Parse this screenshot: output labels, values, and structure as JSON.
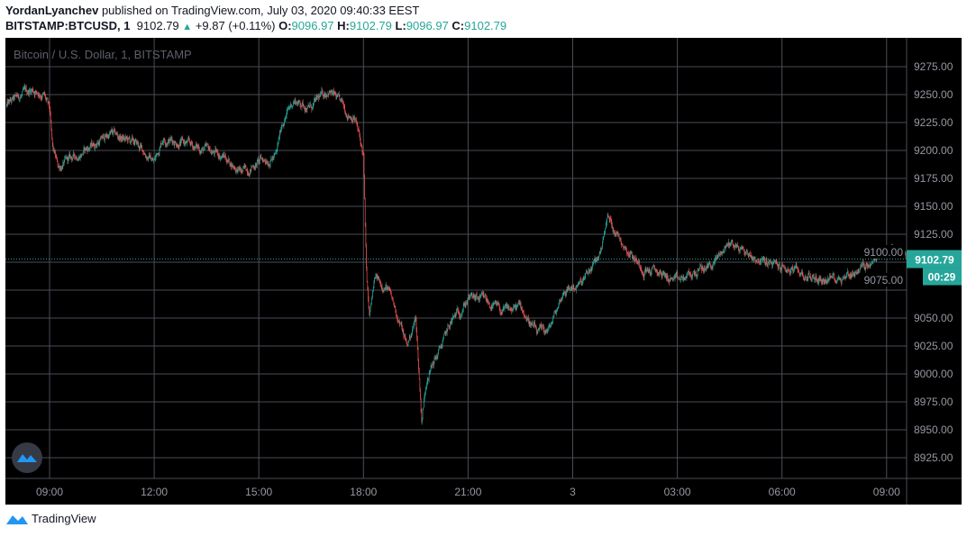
{
  "header": {
    "author": "YordanLyanchev",
    "published_text": "published on TradingView.com, July 03, 2020 09:40:33 EEST",
    "symbol": "BITSTAMP:BTCUSD, 1",
    "last": "9102.79",
    "change": "+9.87 (+0.11%)",
    "o_label": "O:",
    "o": "9096.97",
    "h_label": "H:",
    "h": "9102.79",
    "l_label": "L:",
    "l": "9096.97",
    "c_label": "C:",
    "c": "9102.79"
  },
  "footer": {
    "brand": "TradingView"
  },
  "colors": {
    "up": "#26a69a",
    "down": "#ef5350",
    "background": "#000000",
    "grid": "#4a4d56",
    "axis_text": "#9598a1"
  },
  "chart_data": {
    "type": "candlestick",
    "title": "Bitcoin / U.S. Dollar, 1, BITSTAMP",
    "interval_minutes": 1,
    "ylim": [
      8912,
      9290
    ],
    "y_ticks": [
      "9275.00",
      "9250.00",
      "9225.00",
      "9200.00",
      "9175.00",
      "9150.00",
      "9125.00",
      "9100.00",
      "9075.00",
      "9050.00",
      "9025.00",
      "9000.00",
      "8975.00",
      "8950.00",
      "8925.00"
    ],
    "x_ticks": [
      {
        "label": "09:00",
        "t": "07-02 09:00"
      },
      {
        "label": "12:00",
        "t": "07-02 12:00"
      },
      {
        "label": "15:00",
        "t": "07-02 15:00"
      },
      {
        "label": "18:00",
        "t": "07-02 18:00"
      },
      {
        "label": "21:00",
        "t": "07-02 21:00"
      },
      {
        "label": "3",
        "t": "07-03 00:00"
      },
      {
        "label": "03:00",
        "t": "07-03 03:00"
      },
      {
        "label": "06:00",
        "t": "07-03 06:00"
      },
      {
        "label": "09:00",
        "t": "07-03 09:00"
      }
    ],
    "last_price": "9102.79",
    "countdown": "00:29",
    "grid": true,
    "key_points": [
      [
        "07-02 07:46",
        9240
      ],
      [
        "07-02 08:00",
        9245
      ],
      [
        "07-02 08:30",
        9255
      ],
      [
        "07-02 08:50",
        9250
      ],
      [
        "07-02 09:00",
        9235
      ],
      [
        "07-02 09:05",
        9200
      ],
      [
        "07-02 09:15",
        9185
      ],
      [
        "07-02 10:00",
        9200
      ],
      [
        "07-02 10:45",
        9215
      ],
      [
        "07-02 11:30",
        9205
      ],
      [
        "07-02 12:00",
        9190
      ],
      [
        "07-02 12:15",
        9212
      ],
      [
        "07-02 13:00",
        9205
      ],
      [
        "07-02 14:00",
        9195
      ],
      [
        "07-02 14:30",
        9180
      ],
      [
        "07-02 15:00",
        9190
      ],
      [
        "07-02 15:30",
        9195
      ],
      [
        "07-02 15:40",
        9225
      ],
      [
        "07-02 16:00",
        9245
      ],
      [
        "07-02 16:30",
        9238
      ],
      [
        "07-02 17:00",
        9255
      ],
      [
        "07-02 17:30",
        9235
      ],
      [
        "07-02 17:45",
        9230
      ],
      [
        "07-02 18:00",
        9195
      ],
      [
        "07-02 18:05",
        9090
      ],
      [
        "07-02 18:10",
        9050
      ],
      [
        "07-02 18:20",
        9085
      ],
      [
        "07-02 18:40",
        9078
      ],
      [
        "07-02 19:00",
        9050
      ],
      [
        "07-02 19:15",
        9025
      ],
      [
        "07-02 19:30",
        9050
      ],
      [
        "07-02 19:40",
        8960
      ],
      [
        "07-02 19:50",
        9000
      ],
      [
        "07-02 20:10",
        9020
      ],
      [
        "07-02 20:30",
        9045
      ],
      [
        "07-02 21:00",
        9068
      ],
      [
        "07-02 21:30",
        9065
      ],
      [
        "07-02 22:00",
        9055
      ],
      [
        "07-02 22:30",
        9060
      ],
      [
        "07-02 23:00",
        9035
      ],
      [
        "07-02 23:20",
        9040
      ],
      [
        "07-02 23:45",
        9075
      ],
      [
        "07-03 00:15",
        9080
      ],
      [
        "07-03 00:45",
        9105
      ],
      [
        "07-03 01:00",
        9140
      ],
      [
        "07-03 01:30",
        9115
      ],
      [
        "07-03 02:00",
        9095
      ],
      [
        "07-03 02:30",
        9090
      ],
      [
        "07-03 03:00",
        9082
      ],
      [
        "07-03 03:30",
        9090
      ],
      [
        "07-03 04:00",
        9098
      ],
      [
        "07-03 04:30",
        9118
      ],
      [
        "07-03 05:00",
        9108
      ],
      [
        "07-03 05:30",
        9100
      ],
      [
        "07-03 06:00",
        9095
      ],
      [
        "07-03 06:30",
        9090
      ],
      [
        "07-03 07:00",
        9085
      ],
      [
        "07-03 07:20",
        9085
      ],
      [
        "07-03 08:00",
        9090
      ],
      [
        "07-03 08:45",
        9105
      ],
      [
        "07-03 09:00",
        9110
      ],
      [
        "07-03 09:40",
        9102.79
      ]
    ]
  }
}
